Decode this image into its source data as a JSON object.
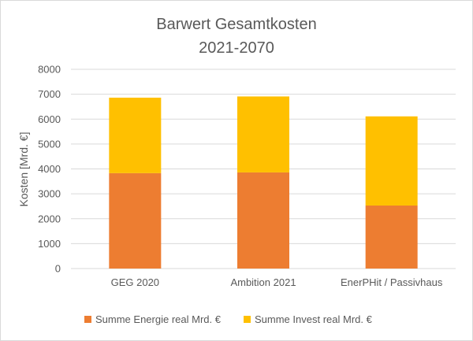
{
  "chart_data": {
    "type": "bar",
    "stacked": true,
    "title": [
      "Barwert Gesamtkosten",
      "2021-2070"
    ],
    "xlabel": "",
    "ylabel": "Kosten [Mrd. €]",
    "ylim": [
      0,
      8000
    ],
    "yticks": [
      0,
      1000,
      2000,
      3000,
      4000,
      5000,
      6000,
      7000,
      8000
    ],
    "grid": true,
    "legend_position": "bottom",
    "categories": [
      "GEG 2020",
      "Ambition 2021",
      "EnerPHit / Passivhaus"
    ],
    "series": [
      {
        "name": "Summe Energie real Mrd. €",
        "color": "#ED7D31",
        "values": [
          3830,
          3860,
          2530
        ]
      },
      {
        "name": "Summe Invest real Mrd. €",
        "color": "#FFC000",
        "values": [
          3030,
          3050,
          3580
        ]
      }
    ],
    "gridline_color": "#d9d9d9",
    "text_color": "#595959"
  }
}
